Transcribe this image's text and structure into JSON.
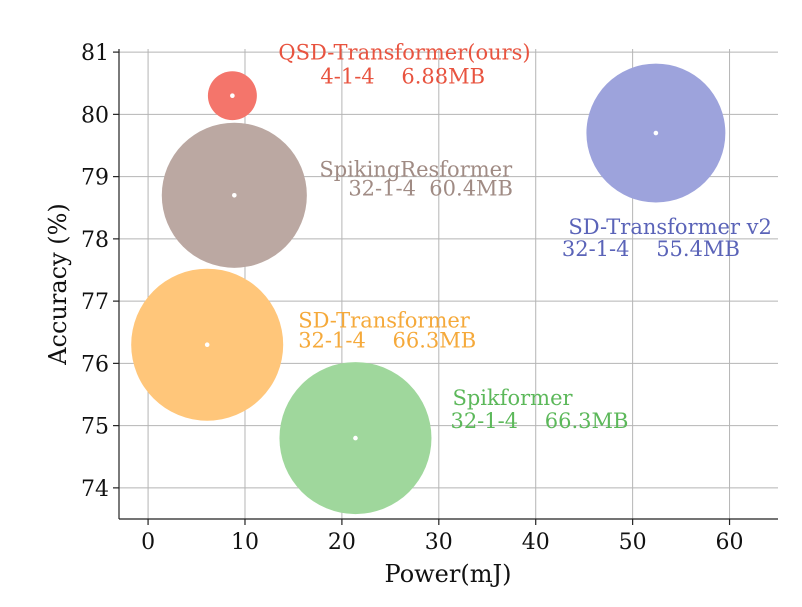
{
  "chart_data": {
    "type": "scatter",
    "title": "",
    "xlabel": "Power(mJ)",
    "ylabel": "Accuracy (%)",
    "xlim": [
      -3,
      65
    ],
    "ylim": [
      73.5,
      81.05
    ],
    "xticks": [
      0,
      10,
      20,
      30,
      40,
      50,
      60
    ],
    "yticks": [
      74,
      75,
      76,
      77,
      78,
      79,
      80,
      81
    ],
    "grid": true,
    "points": [
      {
        "name": "QSD-Transformer(ours)",
        "detail": "4-1-4    6.88MB",
        "power": 8.7,
        "accuracy": 80.3,
        "size_mb": 6.88,
        "color": "#f4756b",
        "label_color": "#e8533f"
      },
      {
        "name": "SpikingResformer",
        "detail": "32-1-4  60.4MB",
        "power": 8.9,
        "accuracy": 78.7,
        "size_mb": 60.4,
        "color": "#bba8a2",
        "label_color": "#a08b84"
      },
      {
        "name": "SD-Transformer v2",
        "detail": "32-1-4    55.4MB",
        "power": 52.4,
        "accuracy": 79.7,
        "size_mb": 55.4,
        "color": "#9da3dc",
        "label_color": "#5a63b8"
      },
      {
        "name": "SD-Transformer",
        "detail": "32-1-4    66.3MB",
        "power": 6.1,
        "accuracy": 76.3,
        "size_mb": 66.3,
        "color": "#ffc67a",
        "label_color": "#f5a93a"
      },
      {
        "name": "Spikformer",
        "detail": "32-1-4    66.3MB",
        "power": 21.4,
        "accuracy": 74.8,
        "size_mb": 66.3,
        "color": "#9fd79c",
        "label_color": "#5cb85a"
      }
    ]
  }
}
